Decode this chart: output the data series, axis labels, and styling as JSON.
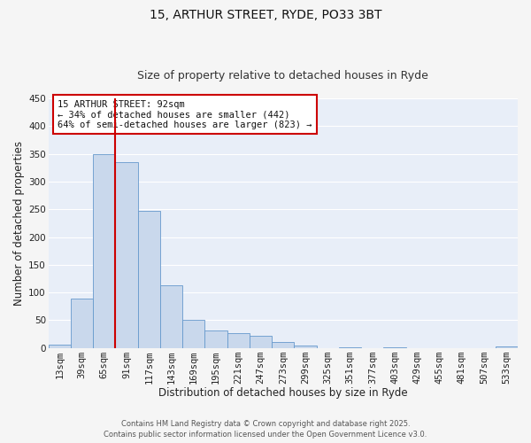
{
  "title": "15, ARTHUR STREET, RYDE, PO33 3BT",
  "subtitle": "Size of property relative to detached houses in Ryde",
  "xlabel": "Distribution of detached houses by size in Ryde",
  "ylabel": "Number of detached properties",
  "bar_color": "#c9d8ec",
  "bar_edge_color": "#6699cc",
  "bin_labels": [
    "13sqm",
    "39sqm",
    "65sqm",
    "91sqm",
    "117sqm",
    "143sqm",
    "169sqm",
    "195sqm",
    "221sqm",
    "247sqm",
    "273sqm",
    "299sqm",
    "325sqm",
    "351sqm",
    "377sqm",
    "403sqm",
    "429sqm",
    "455sqm",
    "481sqm",
    "507sqm",
    "533sqm"
  ],
  "bar_heights": [
    6,
    89,
    350,
    335,
    247,
    113,
    50,
    31,
    26,
    21,
    10,
    4,
    0,
    1,
    0,
    1,
    0,
    0,
    0,
    0,
    2
  ],
  "ylim": [
    0,
    450
  ],
  "yticks": [
    0,
    50,
    100,
    150,
    200,
    250,
    300,
    350,
    400,
    450
  ],
  "vline_color": "#cc0000",
  "annotation_title": "15 ARTHUR STREET: 92sqm",
  "annotation_line1": "← 34% of detached houses are smaller (442)",
  "annotation_line2": "64% of semi-detached houses are larger (823) →",
  "annotation_box_color": "#ffffff",
  "annotation_box_edge": "#cc0000",
  "footer1": "Contains HM Land Registry data © Crown copyright and database right 2025.",
  "footer2": "Contains public sector information licensed under the Open Government Licence v3.0.",
  "plot_bg_color": "#e8eef8",
  "fig_bg_color": "#f5f5f5",
  "grid_color": "#ffffff",
  "title_fontsize": 10,
  "subtitle_fontsize": 9,
  "axis_label_fontsize": 8.5,
  "tick_fontsize": 7.5,
  "annotation_fontsize": 7.5,
  "footer_fontsize": 6
}
